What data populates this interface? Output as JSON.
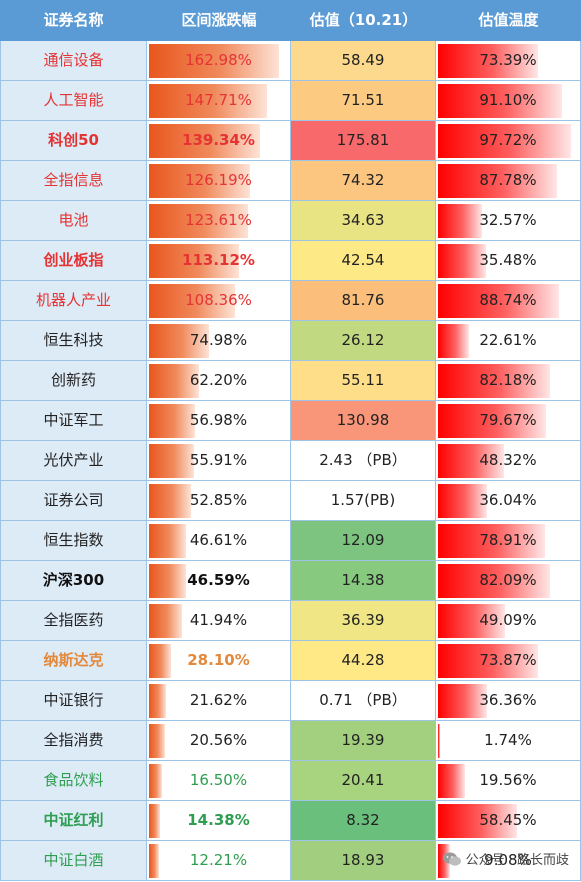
{
  "headers": {
    "name": "证券名称",
    "gain": "区间涨跌幅",
    "pe": "估值（10.21）",
    "temp": "估值温度"
  },
  "rows": [
    {
      "name": "通信设备",
      "gain": "162.98%",
      "gain_pct": 100,
      "pe": "58.49",
      "pe_color": "#fcd98c",
      "temp": "73.39%",
      "temp_pct": 73.39,
      "name_color": "#e53333",
      "gain_color": "#e53333",
      "bold": false
    },
    {
      "name": "人工智能",
      "gain": "147.71%",
      "gain_pct": 90.6,
      "pe": "71.51",
      "pe_color": "#fdca82",
      "temp": "91.10%",
      "temp_pct": 91.1,
      "name_color": "#e53333",
      "gain_color": "#e53333",
      "bold": false
    },
    {
      "name": "科创50",
      "gain": "139.34%",
      "gain_pct": 85.5,
      "pe": "175.81",
      "pe_color": "#f8696b",
      "temp": "97.72%",
      "temp_pct": 97.72,
      "name_color": "#e53333",
      "gain_color": "#e53333",
      "bold": true
    },
    {
      "name": "全指信息",
      "gain": "126.19%",
      "gain_pct": 77.4,
      "pe": "74.32",
      "pe_color": "#fdc680",
      "temp": "87.78%",
      "temp_pct": 87.78,
      "name_color": "#e53333",
      "gain_color": "#e53333",
      "bold": false
    },
    {
      "name": "电池",
      "gain": "123.61%",
      "gain_pct": 75.8,
      "pe": "34.63",
      "pe_color": "#e8e484",
      "temp": "32.57%",
      "temp_pct": 32.57,
      "name_color": "#e53333",
      "gain_color": "#e53333",
      "bold": false
    },
    {
      "name": "创业板指",
      "gain": "113.12%",
      "gain_pct": 69.4,
      "pe": "42.54",
      "pe_color": "#fee987",
      "temp": "35.48%",
      "temp_pct": 35.48,
      "name_color": "#e53333",
      "gain_color": "#e53333",
      "bold": true
    },
    {
      "name": "机器人产业",
      "gain": "108.36%",
      "gain_pct": 66.5,
      "pe": "81.76",
      "pe_color": "#fcbf7b",
      "temp": "88.74%",
      "temp_pct": 88.74,
      "name_color": "#e53333",
      "gain_color": "#e53333",
      "bold": false
    },
    {
      "name": "恒生科技",
      "gain": "74.98%",
      "gain_pct": 46,
      "pe": "26.12",
      "pe_color": "#c1da81",
      "temp": "22.61%",
      "temp_pct": 22.61,
      "name_color": "#222222",
      "gain_color": "#222222",
      "bold": false
    },
    {
      "name": "创新药",
      "gain": "62.20%",
      "gain_pct": 38.2,
      "pe": "55.11",
      "pe_color": "#fede88",
      "temp": "82.18%",
      "temp_pct": 82.18,
      "name_color": "#222222",
      "gain_color": "#222222",
      "bold": false
    },
    {
      "name": "中证军工",
      "gain": "56.98%",
      "gain_pct": 35,
      "pe": "130.98",
      "pe_color": "#f9967a",
      "temp": "79.67%",
      "temp_pct": 79.67,
      "name_color": "#222222",
      "gain_color": "#222222",
      "bold": false
    },
    {
      "name": "光伏产业",
      "gain": "55.91%",
      "gain_pct": 34.3,
      "pe": "2.43 （PB）",
      "pe_color": "#ffffff",
      "temp": "48.32%",
      "temp_pct": 48.32,
      "name_color": "#222222",
      "gain_color": "#222222",
      "bold": false
    },
    {
      "name": "证券公司",
      "gain": "52.85%",
      "gain_pct": 32.4,
      "pe": "1.57(PB)",
      "pe_color": "#ffffff",
      "temp": "36.04%",
      "temp_pct": 36.04,
      "name_color": "#222222",
      "gain_color": "#222222",
      "bold": false
    },
    {
      "name": "恒生指数",
      "gain": "46.61%",
      "gain_pct": 28.6,
      "pe": "12.09",
      "pe_color": "#7cc47f",
      "temp": "78.91%",
      "temp_pct": 78.91,
      "name_color": "#222222",
      "gain_color": "#222222",
      "bold": false
    },
    {
      "name": "沪深300",
      "gain": "46.59%",
      "gain_pct": 28.6,
      "pe": "14.38",
      "pe_color": "#87c97f",
      "temp": "82.09%",
      "temp_pct": 82.09,
      "name_color": "#111111",
      "gain_color": "#111111",
      "bold": true
    },
    {
      "name": "全指医药",
      "gain": "41.94%",
      "gain_pct": 25.7,
      "pe": "36.39",
      "pe_color": "#f0e685",
      "temp": "49.09%",
      "temp_pct": 49.09,
      "name_color": "#222222",
      "gain_color": "#222222",
      "bold": false
    },
    {
      "name": "纳斯达克",
      "gain": "28.10%",
      "gain_pct": 17.2,
      "pe": "44.28",
      "pe_color": "#ffe987",
      "temp": "73.87%",
      "temp_pct": 73.87,
      "name_color": "#e3893c",
      "gain_color": "#e3893c",
      "bold": true
    },
    {
      "name": "中证银行",
      "gain": "21.62%",
      "gain_pct": 13.3,
      "pe": "0.71 （PB）",
      "pe_color": "#ffffff",
      "temp": "36.36%",
      "temp_pct": 36.36,
      "name_color": "#222222",
      "gain_color": "#222222",
      "bold": false
    },
    {
      "name": "全指消费",
      "gain": "20.56%",
      "gain_pct": 12.6,
      "pe": "19.39",
      "pe_color": "#a2d07f",
      "temp": "1.74%",
      "temp_pct": 1.74,
      "name_color": "#222222",
      "gain_color": "#222222",
      "bold": false
    },
    {
      "name": "食品饮料",
      "gain": "16.50%",
      "gain_pct": 10.1,
      "pe": "20.41",
      "pe_color": "#a8d37f",
      "temp": "19.56%",
      "temp_pct": 19.56,
      "name_color": "#2e9e50",
      "gain_color": "#2e9e50",
      "bold": false
    },
    {
      "name": "中证红利",
      "gain": "14.38%",
      "gain_pct": 8.8,
      "pe": "8.32",
      "pe_color": "#6bbf7c",
      "temp": "58.45%",
      "temp_pct": 58.45,
      "name_color": "#2e9e50",
      "gain_color": "#2e9e50",
      "bold": true
    },
    {
      "name": "中证白酒",
      "gain": "12.21%",
      "gain_pct": 7.5,
      "pe": "18.93",
      "pe_color": "#a1cf7f",
      "temp": "9.08%",
      "temp_pct": 9.08,
      "name_color": "#2e9e50",
      "gain_color": "#2e9e50",
      "bold": false
    }
  ],
  "watermark": {
    "icon": "wechat-icon",
    "text": "公众号 · 路长而歧"
  }
}
